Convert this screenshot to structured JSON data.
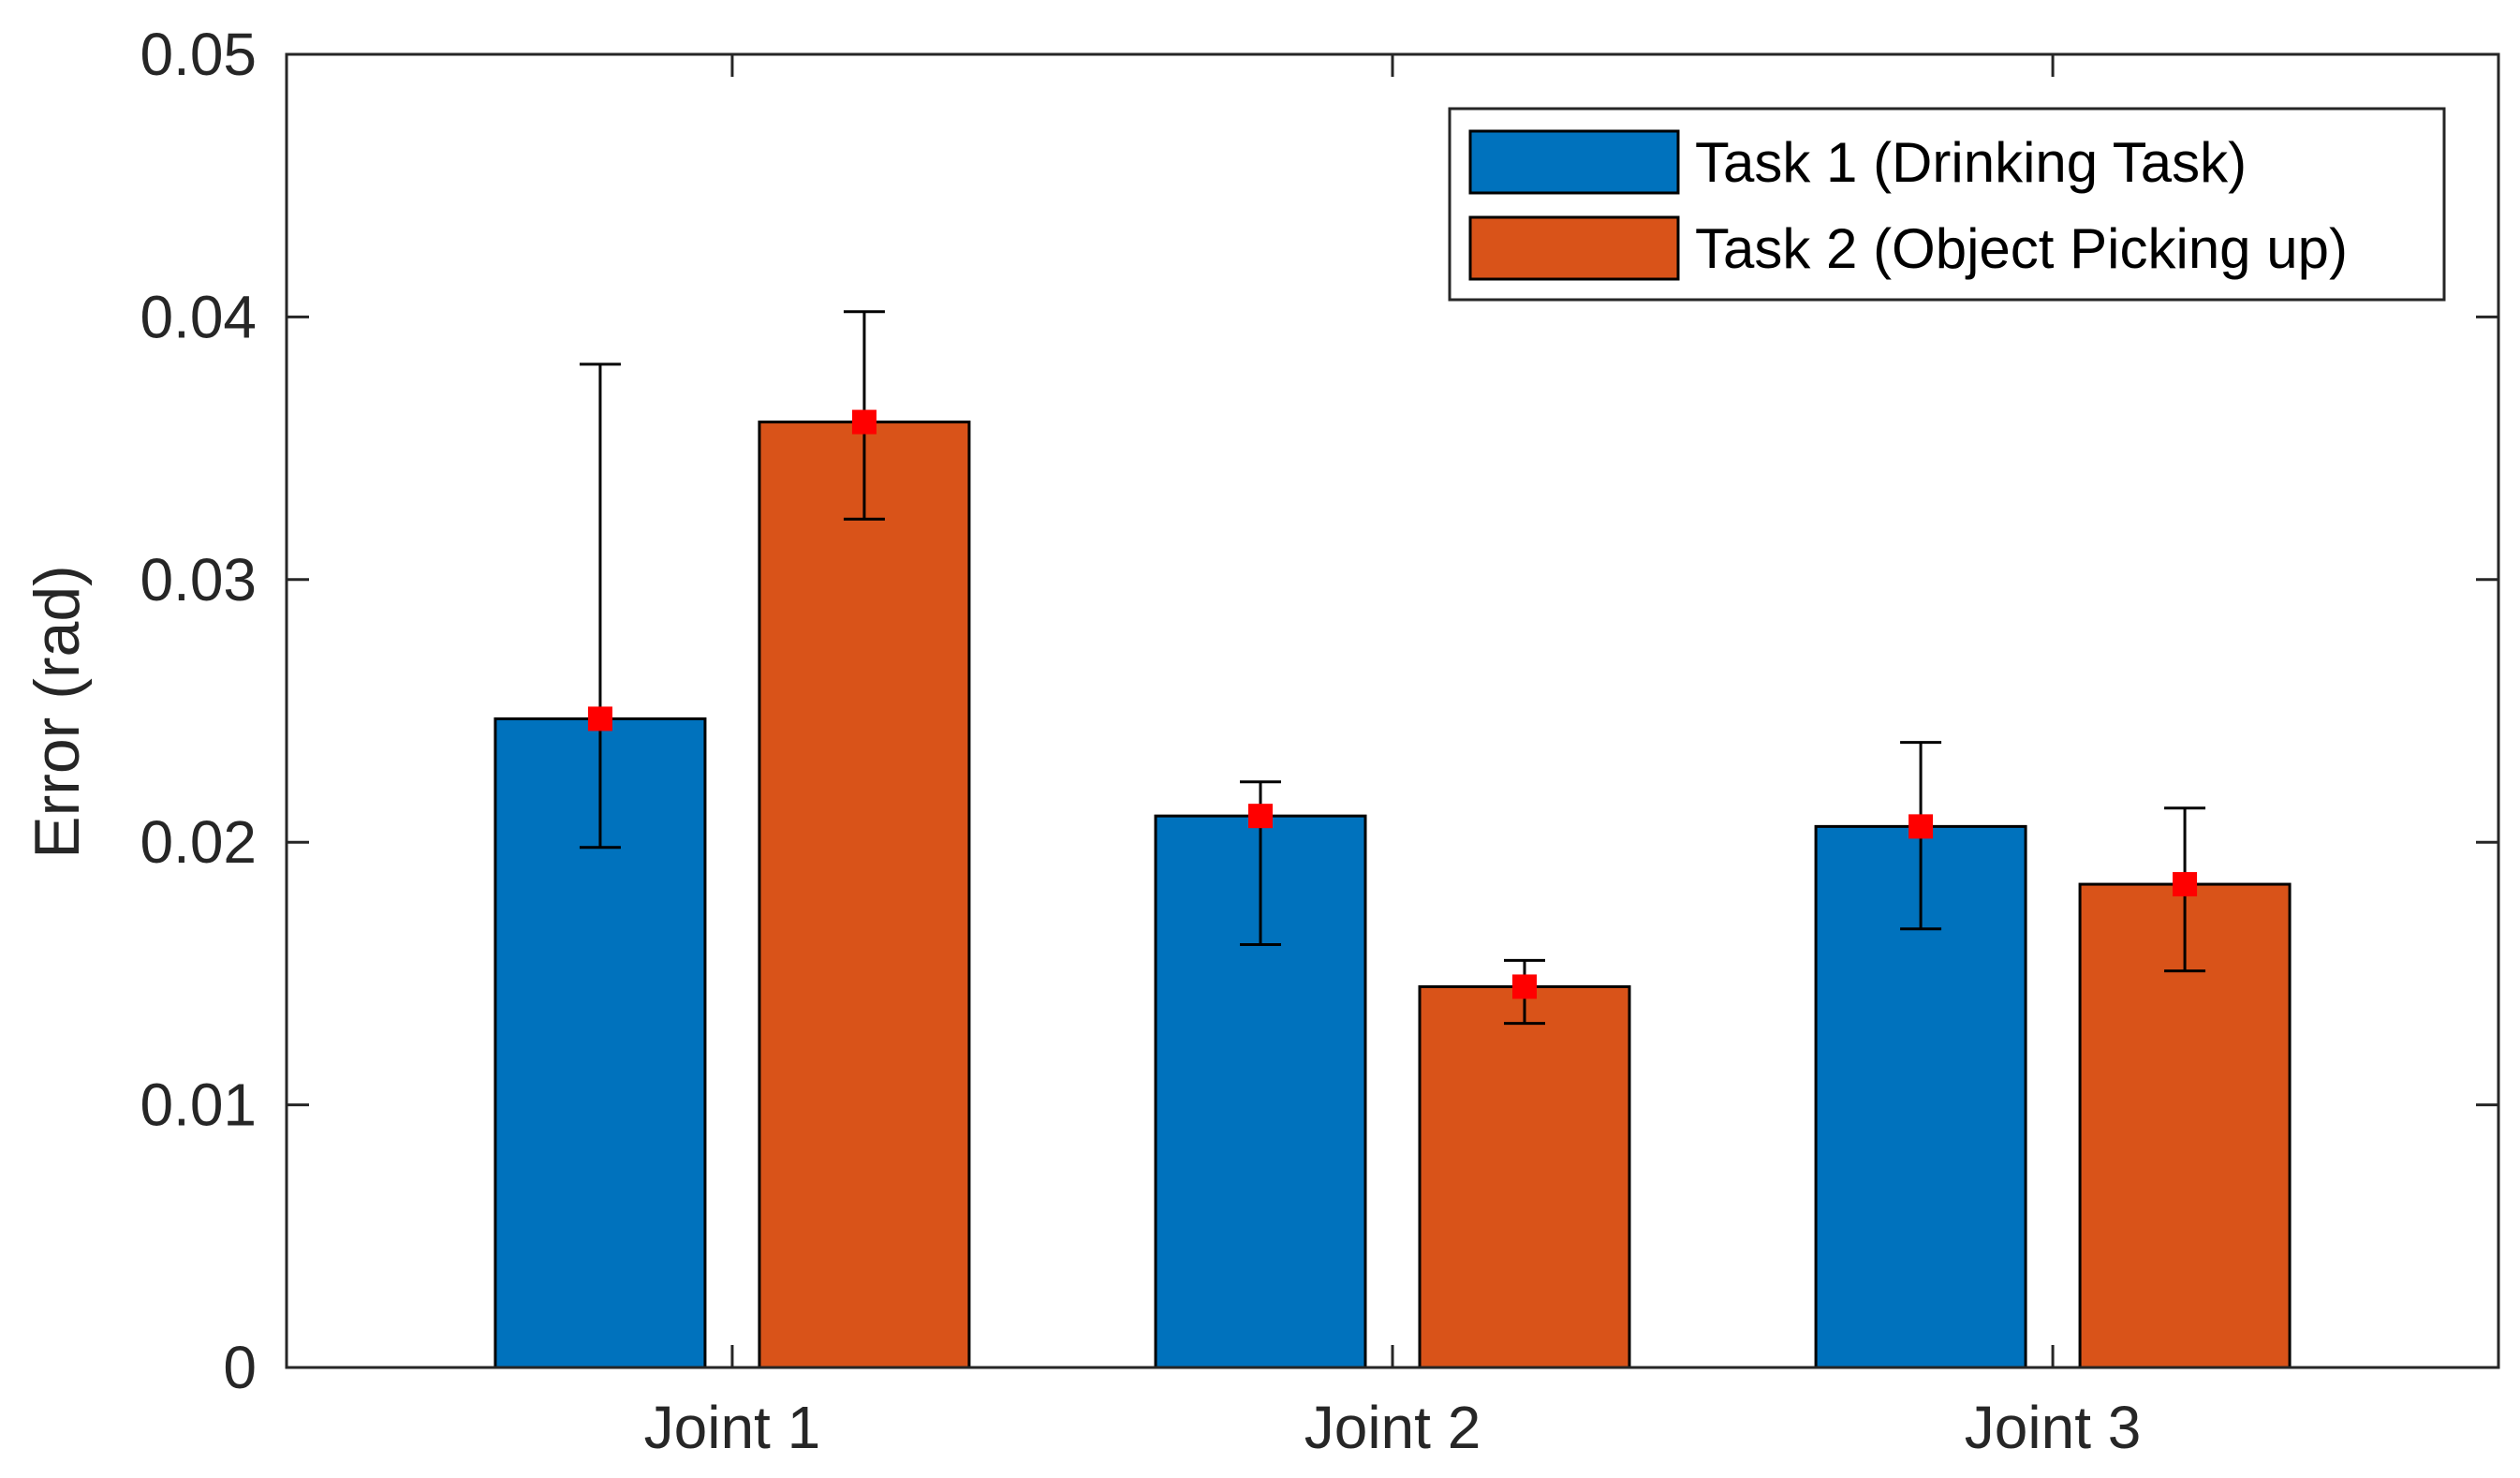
{
  "chart_data": {
    "type": "bar",
    "title": "",
    "xlabel": "",
    "ylabel": "Error (rad)",
    "ylim": [
      0,
      0.05
    ],
    "yticks": [
      0,
      0.01,
      0.02,
      0.03,
      0.04,
      0.05
    ],
    "ytick_labels": [
      "0",
      "0.01",
      "0.02",
      "0.03",
      "0.04",
      "0.05"
    ],
    "categories": [
      "Joint 1",
      "Joint 2",
      "Joint 3"
    ],
    "grid": false,
    "legend_position": "top-right",
    "marker_color": "#FF0000",
    "series": [
      {
        "name": "Task 1 (Drinking Task)",
        "color": "#0072BD",
        "values": [
          0.0247,
          0.021,
          0.0206
        ],
        "error_low": [
          0.0198,
          0.0161,
          0.0167
        ],
        "error_high": [
          0.0382,
          0.0223,
          0.0238
        ]
      },
      {
        "name": "Task 2 (Object Picking up)",
        "color": "#D95319",
        "values": [
          0.036,
          0.0145,
          0.0184
        ],
        "error_low": [
          0.0323,
          0.0131,
          0.0151
        ],
        "error_high": [
          0.0402,
          0.0155,
          0.0213
        ]
      }
    ]
  }
}
